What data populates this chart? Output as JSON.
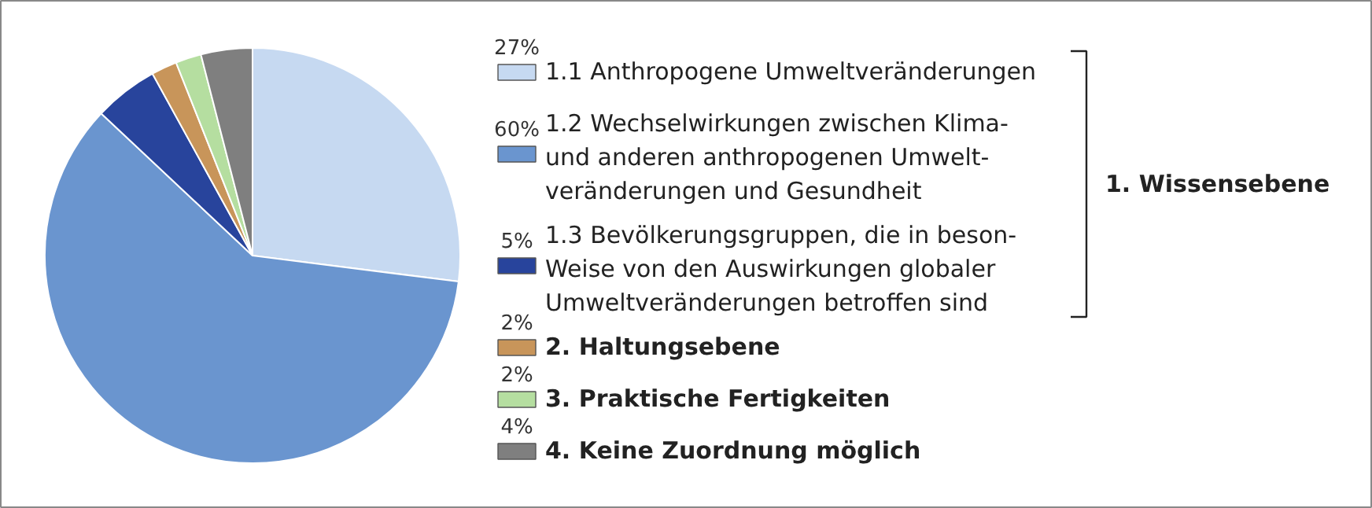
{
  "chart_data": {
    "type": "pie",
    "categories": [
      "1.1 Anthropogene Umweltveränderungen",
      "1.2 Wechselwirkungen zwischen Klima-\nund anderen anthropogenen Umwelt-\nveränderungen und Gesundheit",
      "1.3 Bevölkerungsgruppen, die in beson-\nWeise von den Auswirkungen globaler\nUmweltveränderungen betroffen sind",
      "2. Haltungsebene",
      "3. Praktische Fertigkeiten",
      "4. Keine Zuordnung möglich"
    ],
    "values": [
      27,
      60,
      5,
      2,
      2,
      4
    ],
    "colors": [
      "#c6d9f1",
      "#6a95cf",
      "#28449c",
      "#c8955a",
      "#b5dea0",
      "#7f7f7f"
    ],
    "value_labels": [
      "27%",
      "60%",
      "5%",
      "2%",
      "2%",
      "4%"
    ],
    "legend": "right",
    "annotations": [
      "1. Wissensebene"
    ]
  }
}
